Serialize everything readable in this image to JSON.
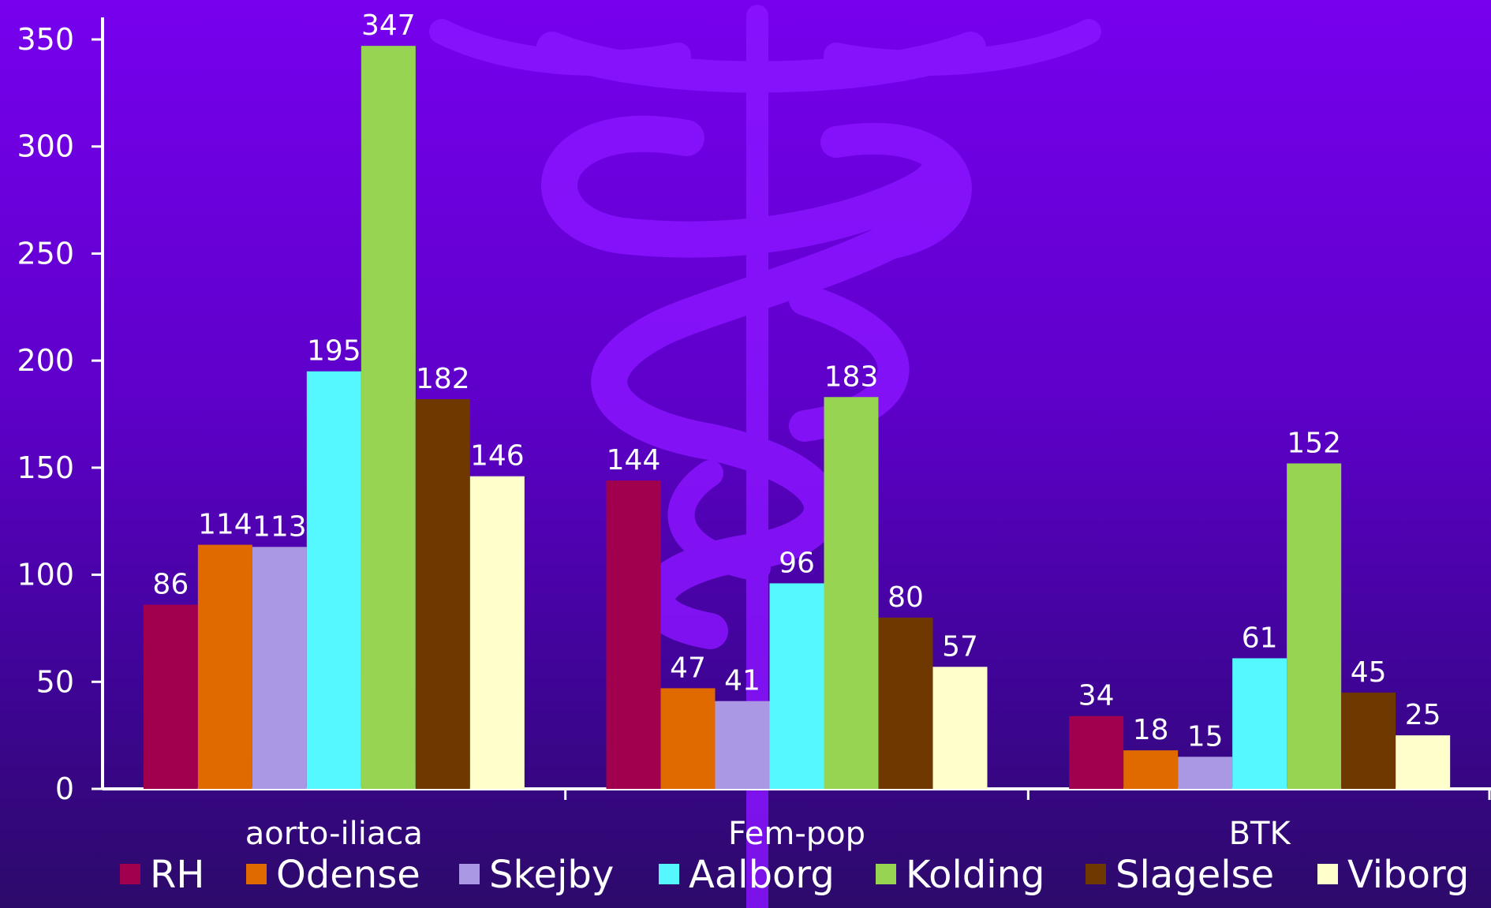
{
  "chart_data": {
    "type": "bar",
    "title": "",
    "xlabel": "",
    "ylabel": "",
    "ylim": [
      0,
      350
    ],
    "yticks": [
      0,
      50,
      100,
      150,
      200,
      250,
      300,
      350
    ],
    "categories": [
      "aorto-iliaca",
      "Fem-pop",
      "BTK"
    ],
    "series": [
      {
        "name": "RH",
        "color": "#a0004e",
        "values": [
          86,
          144,
          34
        ]
      },
      {
        "name": "Odense",
        "color": "#e06a00",
        "values": [
          114,
          47,
          18
        ]
      },
      {
        "name": "Skejby",
        "color": "#aa98e4",
        "values": [
          113,
          41,
          15
        ]
      },
      {
        "name": "Aalborg",
        "color": "#55f8ff",
        "values": [
          195,
          96,
          61
        ]
      },
      {
        "name": "Kolding",
        "color": "#96d452",
        "values": [
          347,
          183,
          152
        ]
      },
      {
        "name": "Slagelse",
        "color": "#6e3800",
        "values": [
          182,
          80,
          45
        ]
      },
      {
        "name": "Viborg",
        "color": "#ffffcc",
        "values": [
          146,
          57,
          25
        ]
      }
    ],
    "data_labels": true,
    "grid": false,
    "legend_position": "bottom"
  }
}
